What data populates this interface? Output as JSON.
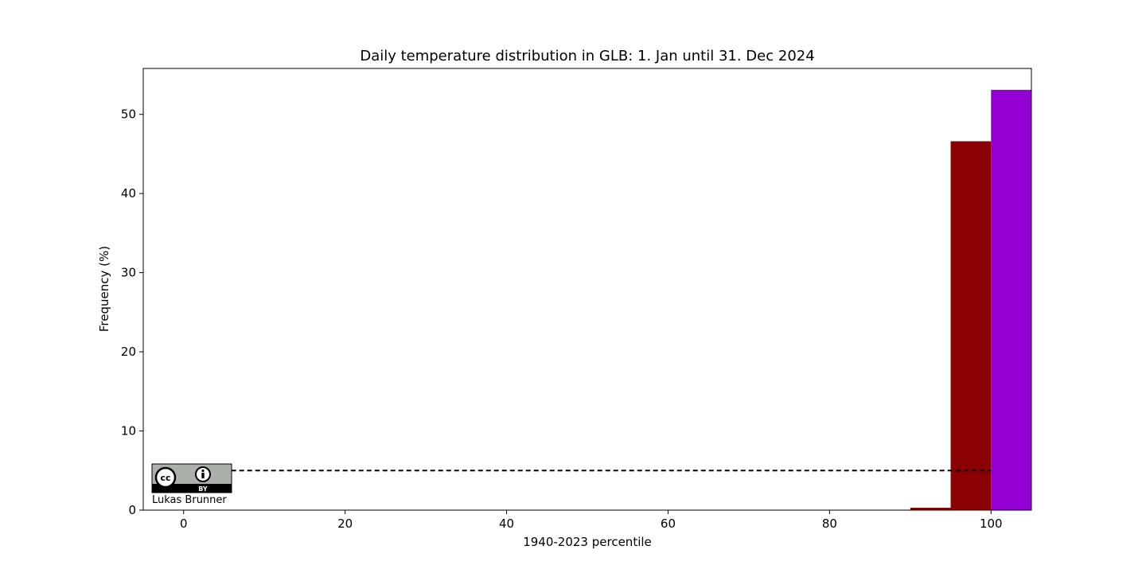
{
  "chart_data": {
    "type": "histogram",
    "title": "Daily temperature distribution in GLB: 1. Jan until 31. Dec 2024",
    "xlabel": "1940-2023 percentile",
    "ylabel": "Frequency (%)",
    "bins": [
      90,
      95,
      100,
      105
    ],
    "values": [
      0.3,
      46.6,
      53.1
    ],
    "colors": [
      "#8b0000",
      "#8b0000",
      "#9400d3"
    ],
    "reference_line": {
      "value": 5,
      "x": [
        0,
        100
      ]
    },
    "xlim": [
      -5,
      105
    ],
    "ylim": [
      0,
      55.8
    ],
    "xticks": [
      0,
      20,
      40,
      60,
      80,
      100
    ],
    "yticks": [
      0,
      10,
      20,
      30,
      40,
      50
    ],
    "badge": {
      "icon": "cc",
      "label": "BY"
    },
    "credit": "Lukas Brunner"
  }
}
